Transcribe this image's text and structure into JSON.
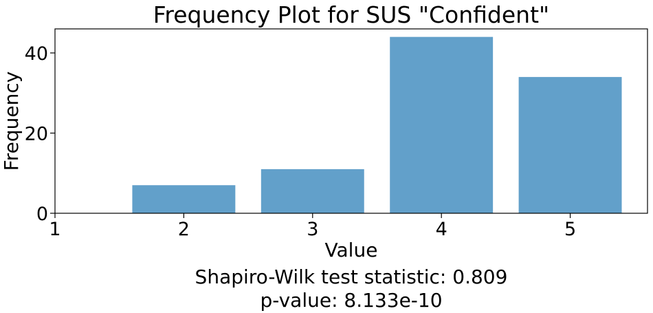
{
  "chart_data": {
    "type": "bar",
    "title": "Frequency Plot for SUS \"Confident\"",
    "xlabel": "Value",
    "ylabel": "Frequency",
    "categories": [
      2,
      3,
      4,
      5
    ],
    "values": [
      7,
      11,
      44,
      34
    ],
    "bar_color": "#62a0ca",
    "xlim": [
      1,
      5.6
    ],
    "ylim": [
      0,
      46
    ],
    "xticks": [
      1,
      2,
      3,
      4,
      5
    ],
    "yticks": [
      0,
      20,
      40
    ],
    "grid": false
  },
  "stats": {
    "shapiro_line": "Shapiro-Wilk test statistic: 0.809",
    "p_value_line": "p-value: 8.133e-10"
  }
}
